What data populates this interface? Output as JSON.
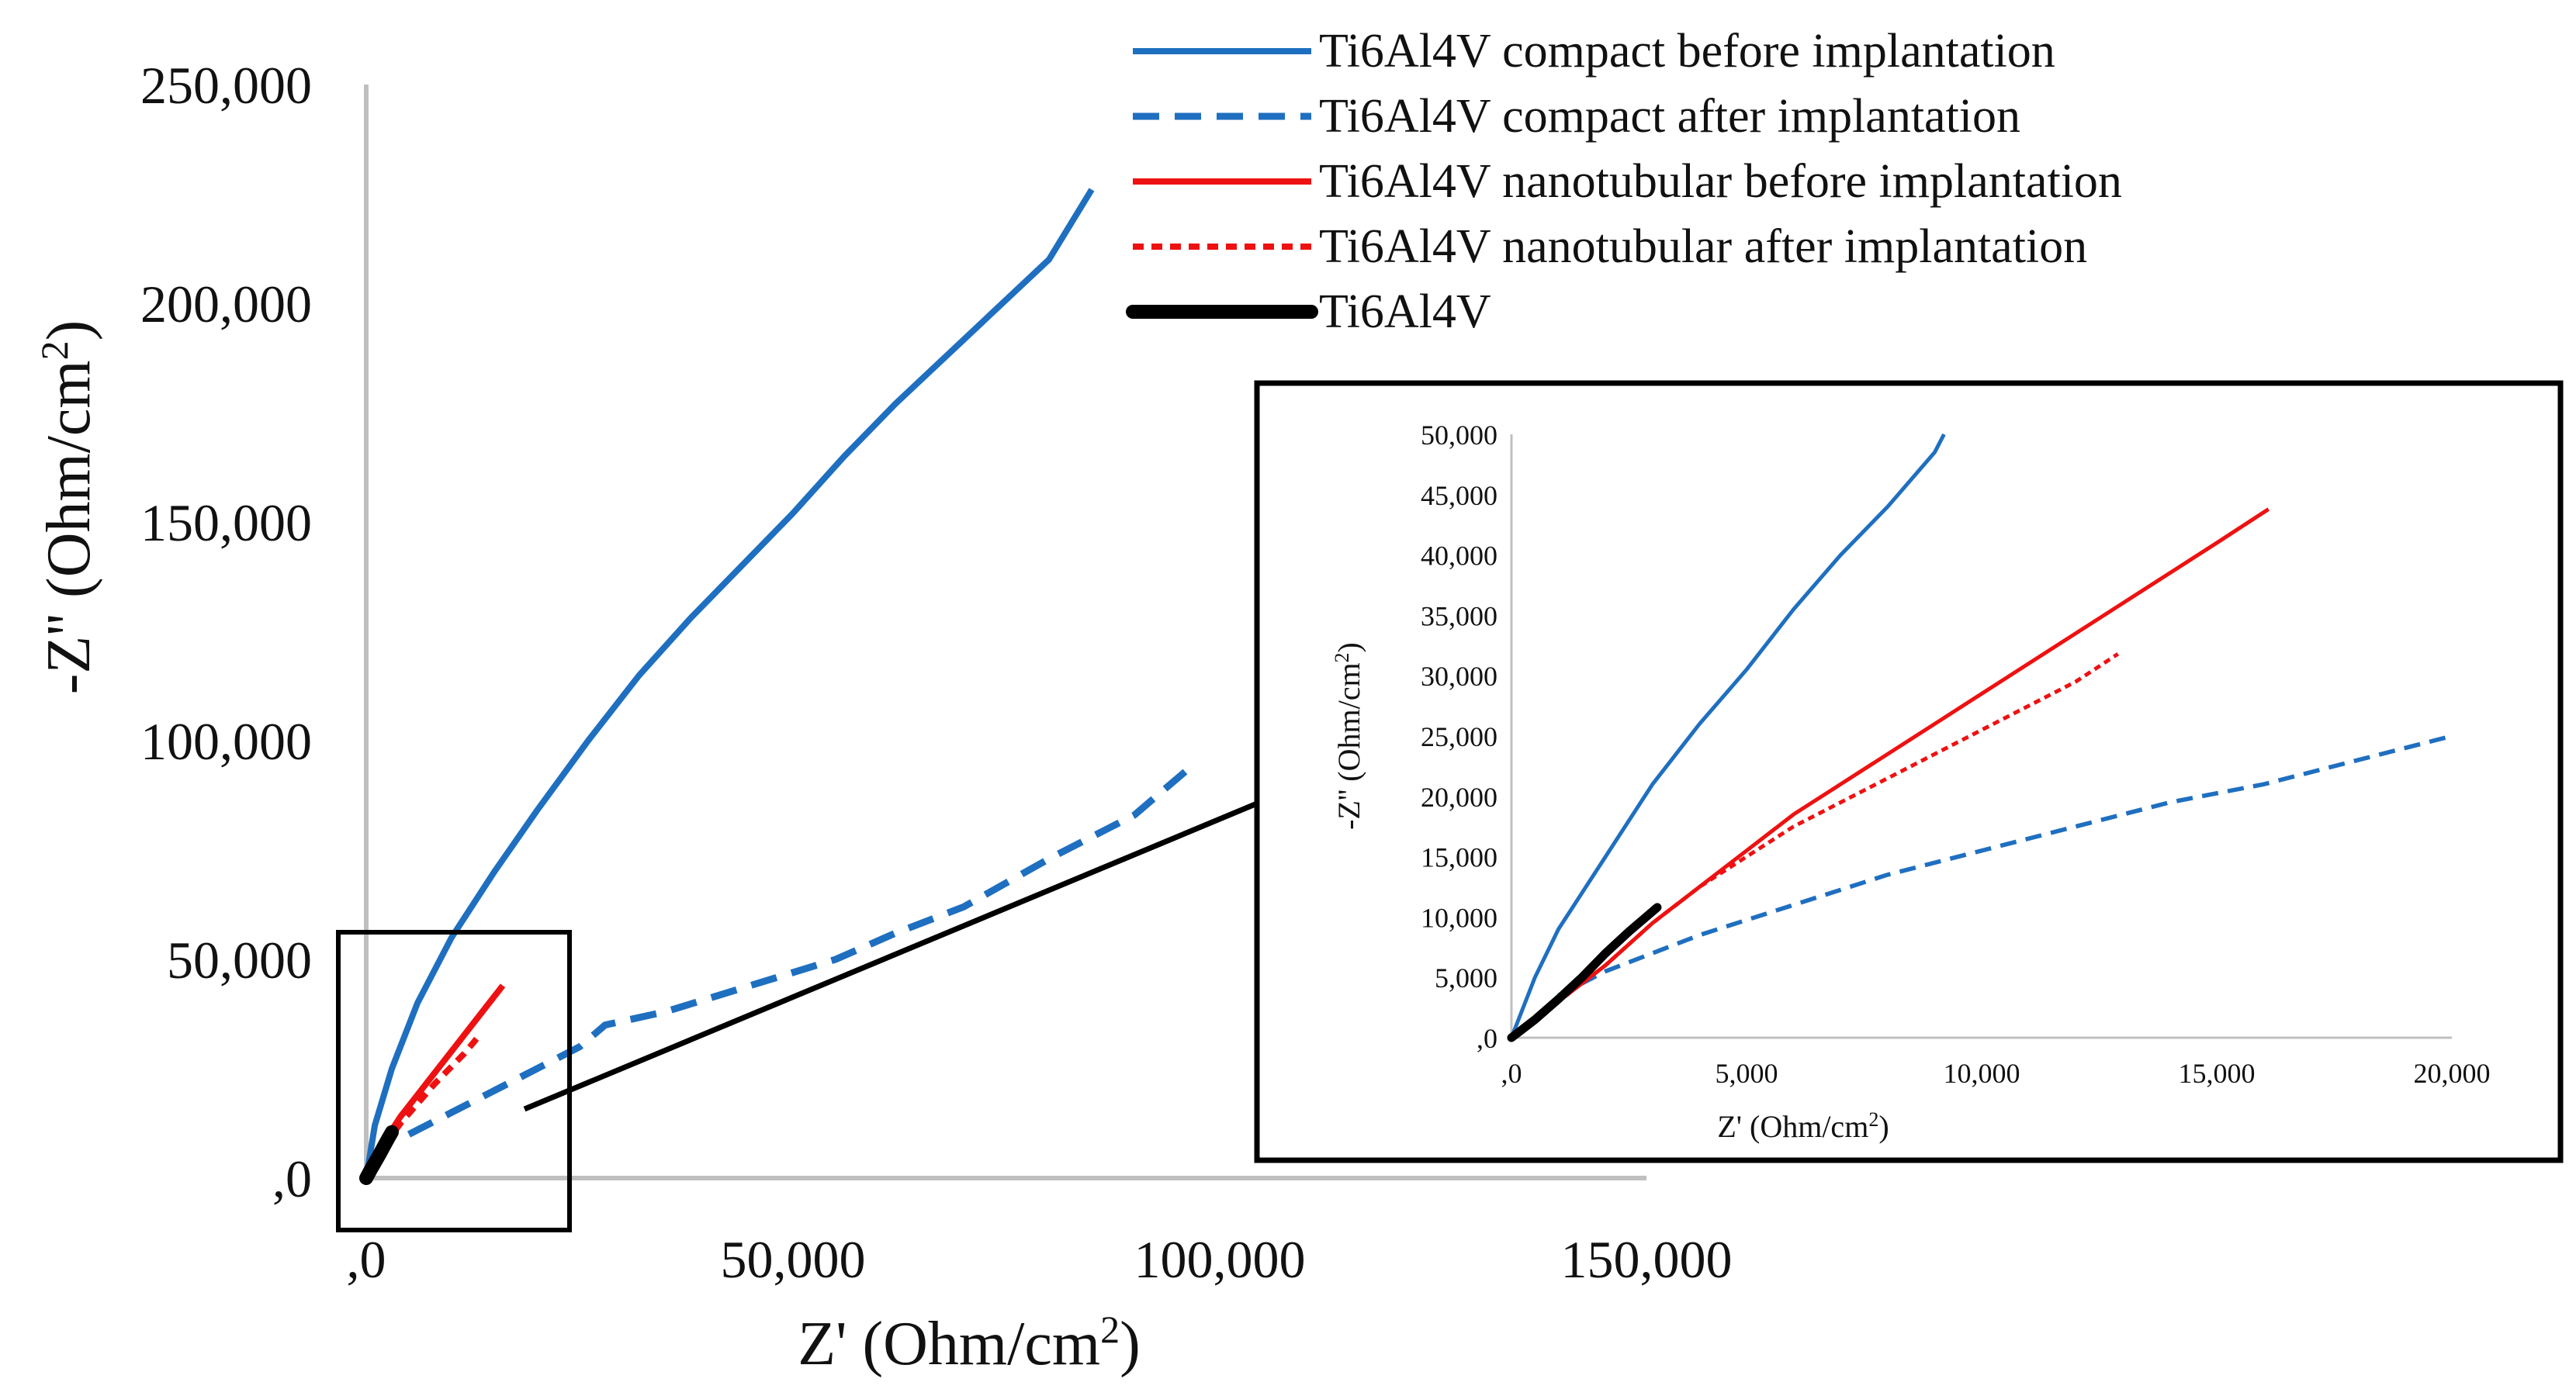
{
  "chart_data": [
    {
      "type": "line",
      "role": "main",
      "xlabel": "Z' (Ohm/cm",
      "ylabel": "-Z'' (Ohm/cm",
      "unit_superscript": "2",
      "xlim": [
        0,
        150000
      ],
      "ylim": [
        0,
        250000
      ],
      "x_ticks": [
        {
          "value": 0,
          "label": ",0"
        },
        {
          "value": 50000,
          "label": "50,000"
        },
        {
          "value": 100000,
          "label": "100,000"
        },
        {
          "value": 150000,
          "label": "150,000"
        }
      ],
      "y_ticks": [
        {
          "value": 0,
          "label": ",0"
        },
        {
          "value": 50000,
          "label": "50,000"
        },
        {
          "value": 100000,
          "label": "100,000"
        },
        {
          "value": 150000,
          "label": "150,000"
        },
        {
          "value": 200000,
          "label": "200,000"
        },
        {
          "value": 250000,
          "label": "250,000"
        }
      ],
      "legend_position": "top-right",
      "series": [
        {
          "name": "Ti6Al4V compact before implantation",
          "color": "#1f6fc0",
          "style": "solid",
          "x": [
            0,
            1000,
            3000,
            6000,
            10000,
            15000,
            20000,
            26000,
            32000,
            38000,
            44000,
            50000,
            56000,
            62000,
            68000,
            74000,
            80000,
            85000
          ],
          "y": [
            0,
            12000,
            25000,
            40000,
            55000,
            70000,
            84000,
            100000,
            115000,
            128000,
            140000,
            152000,
            165000,
            177000,
            188000,
            199000,
            210000,
            226000
          ]
        },
        {
          "name": "Ti6Al4V compact after implantation",
          "color": "#1f6fc0",
          "style": "dashed",
          "x": [
            5000,
            10000,
            15000,
            20000,
            25000,
            28000,
            35000,
            45000,
            55000,
            62000,
            70000,
            80000,
            90000,
            96000
          ],
          "y": [
            10000,
            15000,
            20000,
            25000,
            30000,
            35000,
            38000,
            44000,
            50000,
            56000,
            62000,
            73000,
            83000,
            93000
          ]
        },
        {
          "name": "Ti6Al4V nanotubular before implantation",
          "color": "#ee1111",
          "style": "solid",
          "x": [
            0,
            2000,
            4000,
            6000,
            8000,
            10000,
            12000,
            14000,
            16000
          ],
          "y": [
            0,
            8000,
            14000,
            19000,
            24000,
            29000,
            34000,
            39000,
            44000
          ]
        },
        {
          "name": "Ti6Al4V nanotubular after implantation",
          "color": "#ee1111",
          "style": "dotted",
          "x": [
            0,
            2000,
            4000,
            6000,
            8000,
            10000,
            11500,
            13000
          ],
          "y": [
            0,
            7000,
            12500,
            17000,
            21500,
            25500,
            28500,
            32000
          ]
        },
        {
          "name": "Ti6Al4V",
          "color": "#000000",
          "style": "thick",
          "x": [
            0,
            500,
            1000,
            1500,
            2000,
            2500,
            3000
          ],
          "y": [
            0,
            1800,
            3500,
            5200,
            7000,
            8800,
            10500
          ]
        }
      ]
    },
    {
      "type": "line",
      "role": "inset-zoom",
      "xlabel": "Z' (Ohm/cm",
      "ylabel": "-Z'' (Ohm/cm",
      "unit_superscript": "2",
      "xlim": [
        0,
        20000
      ],
      "ylim": [
        0,
        50000
      ],
      "x_ticks": [
        {
          "value": 0,
          "label": ",0"
        },
        {
          "value": 5000,
          "label": "5,000"
        },
        {
          "value": 10000,
          "label": "10,000"
        },
        {
          "value": 15000,
          "label": "15,000"
        },
        {
          "value": 20000,
          "label": "20,000"
        }
      ],
      "y_ticks": [
        {
          "value": 0,
          "label": ",0"
        },
        {
          "value": 5000,
          "label": "5,000"
        },
        {
          "value": 10000,
          "label": "10,000"
        },
        {
          "value": 15000,
          "label": "15,000"
        },
        {
          "value": 20000,
          "label": "20,000"
        },
        {
          "value": 25000,
          "label": "25,000"
        },
        {
          "value": 30000,
          "label": "30,000"
        },
        {
          "value": 35000,
          "label": "35,000"
        },
        {
          "value": 40000,
          "label": "40,000"
        },
        {
          "value": 45000,
          "label": "45,000"
        },
        {
          "value": 50000,
          "label": "50,000"
        }
      ],
      "series": [
        {
          "name": "Ti6Al4V compact before implantation",
          "color": "#1f6fc0",
          "style": "solid",
          "x": [
            0,
            200,
            500,
            1000,
            1500,
            2000,
            3000,
            4000,
            5000,
            6000,
            7000,
            8000,
            9000,
            9200
          ],
          "y": [
            0,
            2000,
            5000,
            9000,
            12000,
            15000,
            21000,
            26000,
            30500,
            35500,
            40000,
            44000,
            48500,
            50000
          ]
        },
        {
          "name": "Ti6Al4V compact after implantation",
          "color": "#1f6fc0",
          "style": "dashed",
          "x": [
            1000,
            2000,
            4000,
            6000,
            8000,
            10000,
            12000,
            14000,
            16000,
            18000,
            20000
          ],
          "y": [
            3500,
            5500,
            8500,
            11000,
            13500,
            15500,
            17500,
            19500,
            21000,
            23000,
            25000
          ]
        },
        {
          "name": "Ti6Al4V nanotubular before implantation",
          "color": "#ee1111",
          "style": "solid",
          "x": [
            0,
            500,
            1000,
            2000,
            3000,
            4000,
            5000,
            6000,
            7000,
            8000,
            9000,
            10000,
            11000,
            12000,
            13000,
            14000,
            15000,
            16100
          ],
          "y": [
            0,
            1500,
            3000,
            6000,
            9500,
            12500,
            15500,
            18500,
            21000,
            23500,
            26000,
            28500,
            31000,
            33500,
            36000,
            38500,
            41000,
            43800
          ]
        },
        {
          "name": "Ti6Al4V nanotubular after implantation",
          "color": "#ee1111",
          "style": "dotted",
          "x": [
            0,
            1000,
            2000,
            3000,
            4000,
            5000,
            6000,
            7000,
            8000,
            9000,
            10000,
            11000,
            12000,
            12900
          ],
          "y": [
            0,
            3000,
            6000,
            9500,
            12500,
            15000,
            17500,
            19500,
            21500,
            23500,
            25500,
            27500,
            29500,
            31800
          ]
        },
        {
          "name": "Ti6Al4V",
          "color": "#000000",
          "style": "thick",
          "x": [
            0,
            500,
            1000,
            1500,
            2000,
            2500,
            3100
          ],
          "y": [
            0,
            1500,
            3200,
            5000,
            7000,
            8800,
            10800
          ]
        }
      ]
    }
  ]
}
